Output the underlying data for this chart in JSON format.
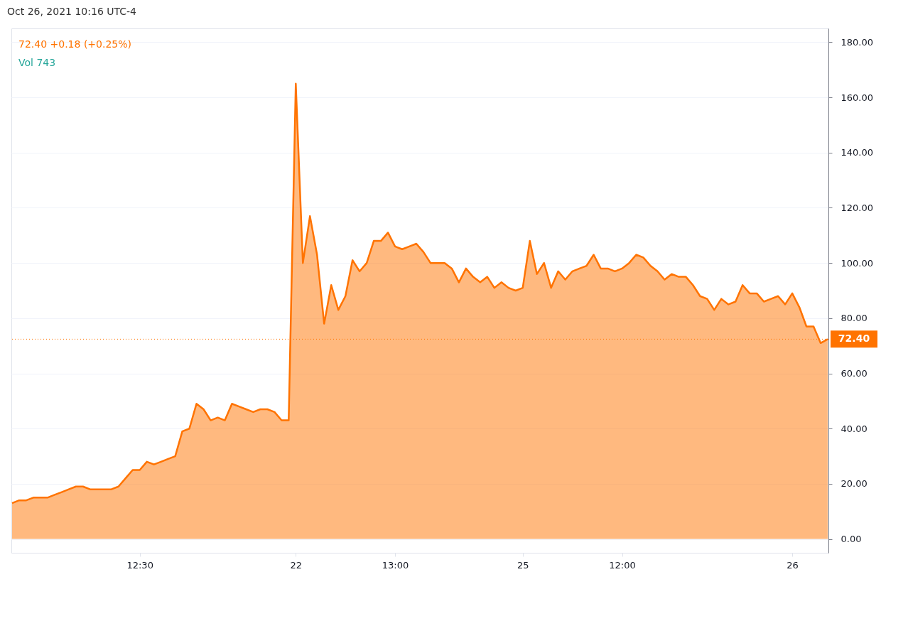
{
  "chart_data": {
    "type": "area",
    "annotations": [
      "Oct 26, 2021 10:16 UTC-4",
      "72.40 +0.18 (+0.25%)",
      "Vol 743"
    ],
    "categories": [
      null,
      null,
      null,
      null,
      null,
      null,
      null,
      null,
      null,
      null,
      null,
      null,
      null,
      null,
      null,
      null,
      null,
      null,
      "12:30",
      null,
      null,
      null,
      null,
      null,
      null,
      null,
      null,
      null,
      null,
      null,
      null,
      null,
      null,
      null,
      null,
      null,
      null,
      null,
      null,
      null,
      "22",
      null,
      null,
      null,
      null,
      null,
      null,
      null,
      null,
      null,
      null,
      null,
      null,
      null,
      "13:00",
      null,
      null,
      null,
      null,
      null,
      null,
      null,
      null,
      null,
      null,
      null,
      null,
      null,
      null,
      null,
      null,
      null,
      "25",
      null,
      null,
      null,
      null,
      null,
      null,
      null,
      null,
      null,
      null,
      null,
      null,
      null,
      "12:00",
      null,
      null,
      null,
      null,
      null,
      null,
      null,
      null,
      null,
      null,
      null,
      null,
      null,
      null,
      null,
      null,
      null,
      null,
      null,
      null,
      null,
      null,
      null,
      "26",
      null,
      null,
      null,
      null,
      null
    ],
    "series": [
      {
        "color": "#ff7300",
        "values": [
          13,
          14,
          14,
          15,
          15,
          15,
          16,
          17,
          18,
          19,
          19,
          18,
          18,
          18,
          18,
          19,
          22,
          25,
          25,
          28,
          27,
          28,
          29,
          30,
          39,
          40,
          49,
          47,
          43,
          44,
          43,
          49,
          48,
          47,
          46,
          47,
          47,
          46,
          43,
          43,
          165,
          100,
          117,
          103,
          78,
          92,
          83,
          88,
          101,
          97,
          100,
          108,
          108,
          111,
          106,
          105,
          106,
          107,
          104,
          100,
          100,
          100,
          98,
          93,
          98,
          95,
          93,
          95,
          91,
          93,
          91,
          90,
          91,
          108,
          96,
          100,
          91,
          97,
          94,
          97,
          98,
          99,
          103,
          98,
          98,
          97,
          98,
          100,
          103,
          102,
          99,
          97,
          94,
          96,
          95,
          95,
          92,
          88,
          87,
          83,
          87,
          85,
          86,
          92,
          89,
          89,
          86,
          87,
          88,
          85,
          89,
          84,
          77,
          77,
          71,
          72.4
        ]
      }
    ],
    "ylim": [
      -5,
      185
    ],
    "yticks": [
      {
        "value": 0,
        "label": "0.00"
      },
      {
        "value": 20,
        "label": "20.00"
      },
      {
        "value": 40,
        "label": "40.00"
      },
      {
        "value": 60,
        "label": "60.00"
      },
      {
        "value": 80,
        "label": "80.00"
      },
      {
        "value": 100,
        "label": "100.00"
      },
      {
        "value": 120,
        "label": "120.00"
      },
      {
        "value": 140,
        "label": "140.00"
      },
      {
        "value": 160,
        "label": "160.00"
      },
      {
        "value": 180,
        "label": "180.00"
      }
    ],
    "ref_lines": [
      {
        "axis": "y",
        "value": 72.4,
        "label": "72.40",
        "color": "#ff7300",
        "line_style": "dotted"
      }
    ],
    "grid": "y"
  }
}
